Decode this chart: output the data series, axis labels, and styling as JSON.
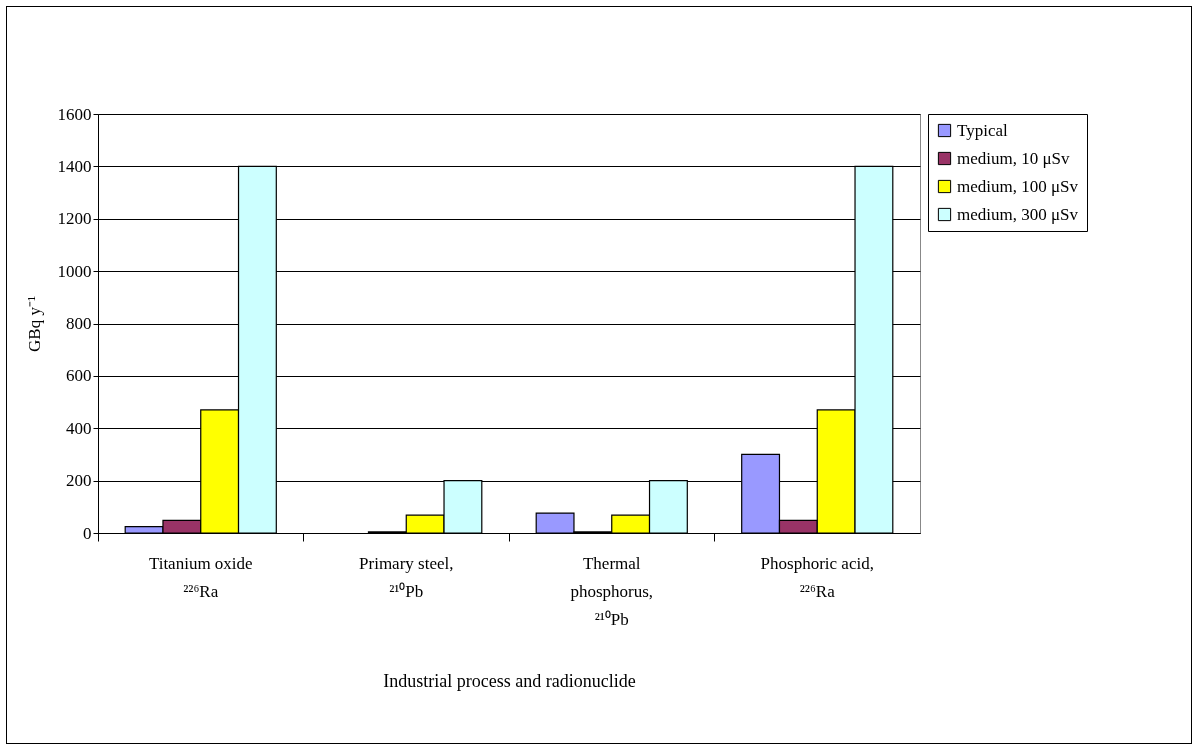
{
  "chart_data": {
    "type": "bar",
    "xlabel": "Industrial process and radionuclide",
    "ylabel": "GBq y⁻¹",
    "categories": [
      "Titanium oxide ²²⁶Ra",
      "Primary steel, ²¹⁰Pb",
      "Thermal phosphorus, ²¹⁰Pb",
      "Phosphoric acid, ²²⁶Ra"
    ],
    "series": [
      {
        "name": "Typical",
        "color": "#9999ff",
        "values": [
          24,
          null,
          76,
          300
        ]
      },
      {
        "name": "medium, 10 μSv",
        "color": "#993366",
        "values": [
          48,
          4,
          4,
          48
        ]
      },
      {
        "name": "medium, 100 μSv",
        "color": "#ffff00",
        "values": [
          470,
          68,
          68,
          470
        ]
      },
      {
        "name": "medium, 300 μSv",
        "color": "#ccffff",
        "values": [
          1400,
          200,
          200,
          1400
        ]
      }
    ],
    "ylim": [
      0,
      1600
    ],
    "yticks": [
      0,
      200,
      400,
      600,
      800,
      1000,
      1200,
      1400,
      1600
    ],
    "grid": "y",
    "legend": "right"
  }
}
